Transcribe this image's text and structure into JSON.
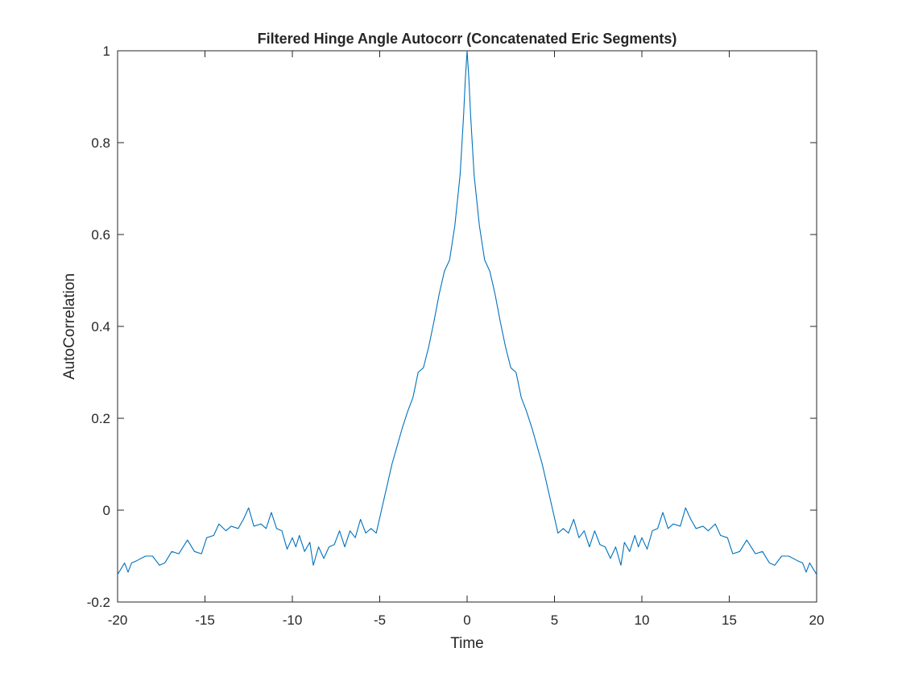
{
  "chart_data": {
    "type": "line",
    "title": "Filtered Hinge Angle Autocorr (Concatenated Eric Segments)",
    "xlabel": "Time",
    "ylabel": "AutoCorrelation",
    "xlim": [
      -20,
      20
    ],
    "ylim": [
      -0.2,
      1
    ],
    "xticks": [
      -20,
      -15,
      -10,
      -5,
      0,
      5,
      10,
      15,
      20
    ],
    "yticks": [
      -0.2,
      0,
      0.2,
      0.4,
      0.6,
      0.8,
      1
    ],
    "xtick_labels": [
      "-20",
      "-15",
      "-10",
      "-5",
      "0",
      "5",
      "10",
      "15",
      "20"
    ],
    "ytick_labels": [
      "-0.2",
      "0",
      "0.2",
      "0.4",
      "0.6",
      "0.8",
      "1"
    ],
    "grid": false,
    "line_color": "#0072BD",
    "series": [
      {
        "x": [
          -20,
          -19.6,
          -19.4,
          -19.2,
          -18.9,
          -18.4,
          -18.0,
          -17.6,
          -17.3,
          -16.9,
          -16.5,
          -16.0,
          -15.6,
          -15.2,
          -14.9,
          -14.5,
          -14.2,
          -13.8,
          -13.5,
          -13.1,
          -12.8,
          -12.5,
          -12.2,
          -11.8,
          -11.5,
          -11.2,
          -10.9,
          -10.6,
          -10.3,
          -10.0,
          -9.8,
          -9.6,
          -9.3,
          -9.0,
          -8.8,
          -8.5,
          -8.2,
          -7.9,
          -7.6,
          -7.3,
          -7.0,
          -6.7,
          -6.4,
          -6.1,
          -5.8,
          -5.5,
          -5.2,
          -4.9,
          -4.6,
          -4.3,
          -4.0,
          -3.7,
          -3.4,
          -3.1,
          -2.8,
          -2.5,
          -2.2,
          -1.9,
          -1.6,
          -1.3,
          -1.0,
          -0.7,
          -0.4,
          -0.2,
          -0.1,
          0.0,
          0.1,
          0.2,
          0.4,
          0.7,
          1.0,
          1.3,
          1.6,
          1.9,
          2.2,
          2.5,
          2.8,
          3.1,
          3.4,
          3.7,
          4.0,
          4.3,
          4.6,
          4.9,
          5.2,
          5.5,
          5.8,
          6.1,
          6.4,
          6.7,
          7.0,
          7.3,
          7.6,
          7.9,
          8.2,
          8.5,
          8.8,
          9.0,
          9.3,
          9.6,
          9.8,
          10.0,
          10.3,
          10.6,
          10.9,
          11.2,
          11.5,
          11.8,
          12.2,
          12.5,
          12.8,
          13.1,
          13.5,
          13.8,
          14.2,
          14.5,
          14.9,
          15.2,
          15.6,
          16.0,
          16.5,
          16.9,
          17.3,
          17.6,
          18.0,
          18.4,
          18.9,
          19.2,
          19.4,
          19.6,
          20.0
        ],
        "y": [
          -0.14,
          -0.115,
          -0.135,
          -0.115,
          -0.11,
          -0.1,
          -0.1,
          -0.12,
          -0.115,
          -0.09,
          -0.095,
          -0.065,
          -0.09,
          -0.095,
          -0.06,
          -0.055,
          -0.03,
          -0.045,
          -0.035,
          -0.04,
          -0.02,
          0.005,
          -0.035,
          -0.03,
          -0.04,
          -0.005,
          -0.04,
          -0.045,
          -0.085,
          -0.06,
          -0.08,
          -0.055,
          -0.09,
          -0.07,
          -0.12,
          -0.08,
          -0.105,
          -0.08,
          -0.075,
          -0.045,
          -0.08,
          -0.045,
          -0.06,
          -0.02,
          -0.05,
          -0.04,
          -0.05,
          0.0,
          0.05,
          0.1,
          0.14,
          0.18,
          0.215,
          0.245,
          0.3,
          0.31,
          0.355,
          0.41,
          0.47,
          0.52,
          0.545,
          0.62,
          0.73,
          0.86,
          0.94,
          1.0,
          0.94,
          0.86,
          0.73,
          0.62,
          0.545,
          0.52,
          0.47,
          0.41,
          0.355,
          0.31,
          0.3,
          0.245,
          0.215,
          0.18,
          0.14,
          0.1,
          0.05,
          0.0,
          -0.05,
          -0.04,
          -0.05,
          -0.02,
          -0.06,
          -0.045,
          -0.08,
          -0.045,
          -0.075,
          -0.08,
          -0.105,
          -0.08,
          -0.12,
          -0.07,
          -0.09,
          -0.055,
          -0.08,
          -0.06,
          -0.085,
          -0.045,
          -0.04,
          -0.005,
          -0.04,
          -0.03,
          -0.035,
          0.005,
          -0.02,
          -0.04,
          -0.035,
          -0.045,
          -0.03,
          -0.055,
          -0.06,
          -0.095,
          -0.09,
          -0.065,
          -0.095,
          -0.09,
          -0.115,
          -0.12,
          -0.1,
          -0.1,
          -0.11,
          -0.115,
          -0.135,
          -0.115,
          -0.14
        ]
      }
    ]
  }
}
